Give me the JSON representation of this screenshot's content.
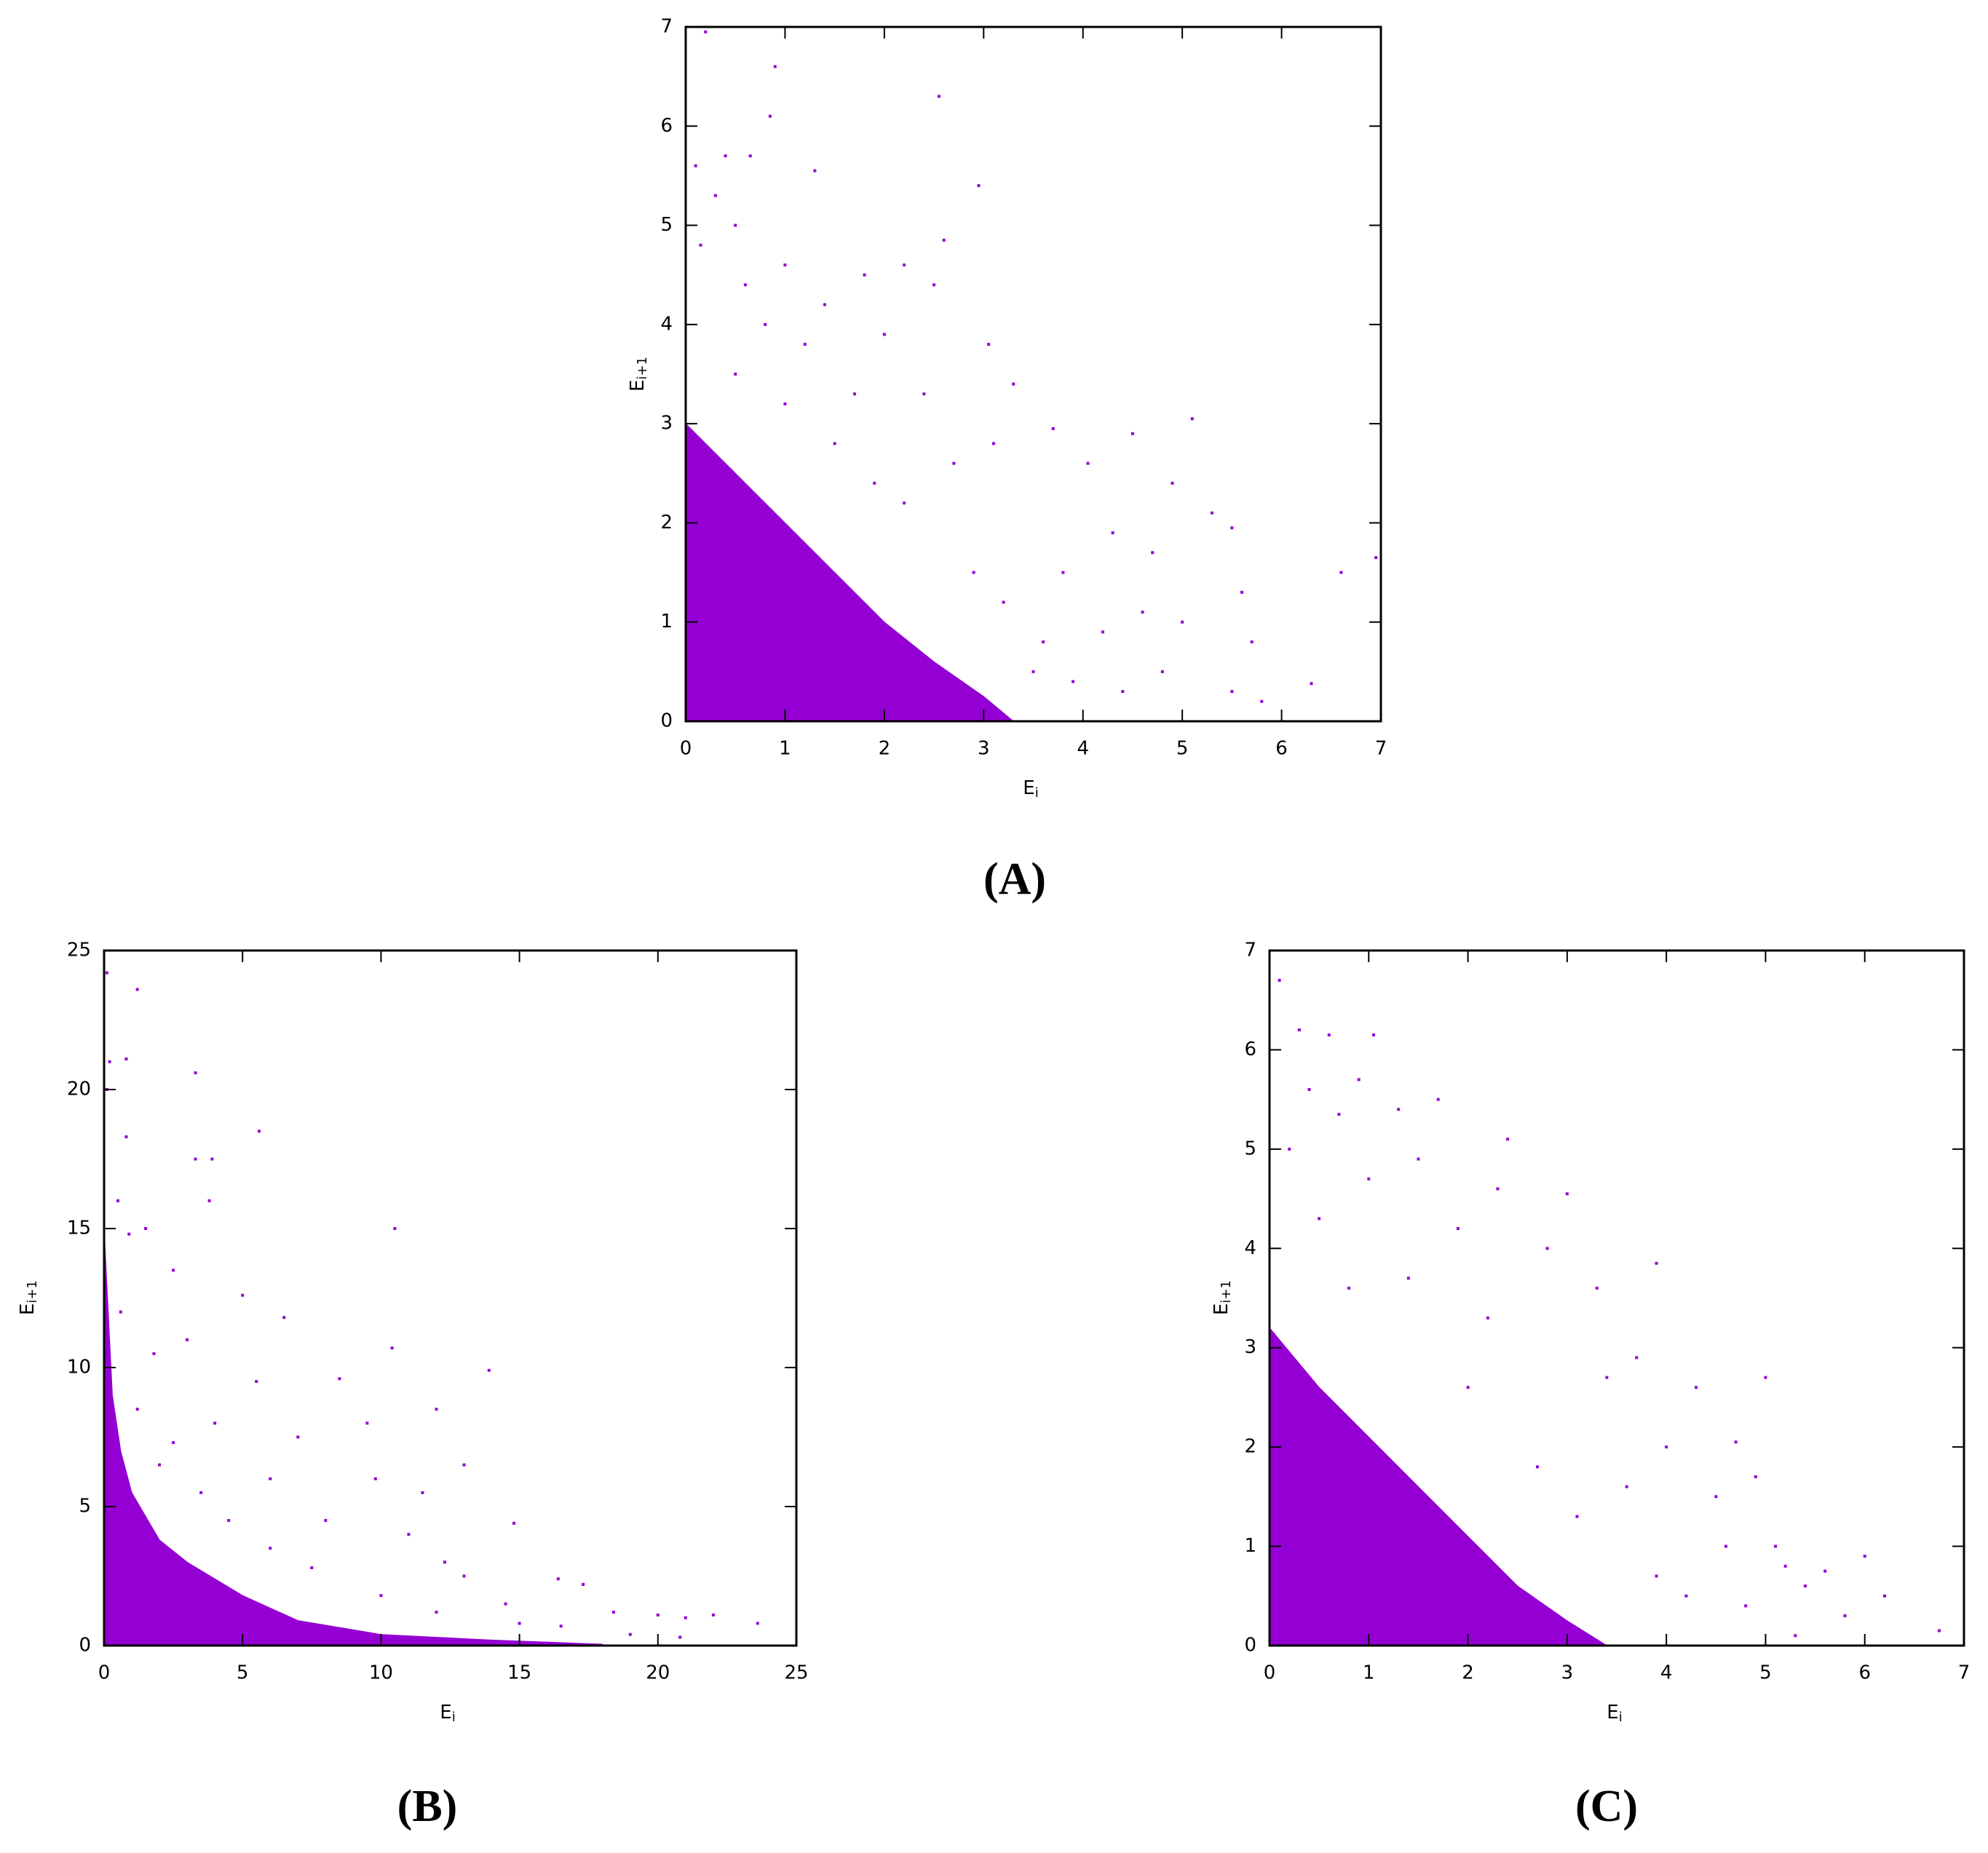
{
  "chart_data": [
    {
      "type": "scatter",
      "label": "(A)",
      "xlabel": "E",
      "xlabel_subscript": "i",
      "ylabel": "E",
      "ylabel_subscript": "i+1",
      "xlim": [
        0,
        7
      ],
      "ylim": [
        0,
        7
      ],
      "xticks": [
        0,
        1,
        2,
        3,
        4,
        5,
        6,
        7
      ],
      "yticks": [
        0,
        1,
        2,
        3,
        4,
        5,
        6,
        7
      ],
      "series": [
        {
          "color": "#9400d3",
          "kind": "area",
          "x": [
            0,
            0,
            0.5,
            1,
            1.5,
            2,
            2.5,
            3,
            3.3,
            0
          ],
          "y": [
            0,
            3.0,
            2.5,
            2.0,
            1.5,
            1.0,
            0.6,
            0.25,
            0,
            0
          ]
        },
        {
          "color": "#9400d3",
          "x": [
            0.2,
            0.9,
            2.55,
            0.85,
            2.95,
            0.1,
            0.4,
            0.65,
            1.3,
            0.3,
            0.5,
            0.15,
            2.6,
            2.2,
            1.8,
            1.0,
            0.6,
            1.4,
            2.5,
            3.05,
            2.0,
            1.2,
            0.8,
            3.3,
            2.4,
            1.7,
            3.7,
            4.05,
            3.1,
            2.7,
            4.9,
            5.1,
            4.5,
            5.3,
            5.5,
            4.7,
            4.3,
            3.8,
            6.95,
            6.6,
            5.6,
            5.0,
            4.6,
            5.7,
            4.2,
            3.6,
            6.3,
            5.8,
            5.5,
            4.8,
            4.4,
            3.9,
            3.5,
            2.2,
            1.9,
            2.9,
            3.2,
            1.5,
            1.0,
            0.5
          ],
          "y": [
            6.95,
            6.6,
            6.3,
            6.1,
            5.4,
            5.6,
            5.7,
            5.7,
            5.55,
            5.3,
            5.0,
            4.8,
            4.85,
            4.6,
            4.5,
            4.6,
            4.4,
            4.2,
            4.4,
            3.8,
            3.9,
            3.8,
            4.0,
            3.4,
            3.3,
            3.3,
            2.95,
            2.6,
            2.8,
            2.6,
            2.4,
            3.05,
            2.9,
            2.1,
            1.95,
            1.7,
            1.9,
            1.5,
            1.65,
            1.5,
            1.3,
            1.0,
            1.1,
            0.8,
            0.9,
            0.8,
            0.38,
            0.2,
            0.3,
            0.5,
            0.3,
            0.4,
            0.5,
            2.2,
            2.4,
            1.5,
            1.2,
            2.8,
            3.2,
            3.5
          ]
        }
      ]
    },
    {
      "type": "scatter",
      "label": "(B)",
      "xlabel": "E",
      "xlabel_subscript": "i",
      "ylabel": "E",
      "ylabel_subscript": "i+1",
      "xlim": [
        0,
        25
      ],
      "ylim": [
        0,
        25
      ],
      "xticks": [
        0,
        5,
        10,
        15,
        20,
        25
      ],
      "yticks": [
        0,
        5,
        10,
        15,
        20,
        25
      ],
      "series": [
        {
          "color": "#9400d3",
          "kind": "area",
          "x": [
            0,
            0,
            0.3,
            0.6,
            1,
            2,
            3,
            5,
            7,
            10,
            14,
            18,
            18,
            0
          ],
          "y": [
            0,
            15,
            9,
            7,
            5.5,
            3.8,
            3,
            1.8,
            0.9,
            0.4,
            0.2,
            0.05,
            0,
            0
          ]
        },
        {
          "color": "#9400d3",
          "x": [
            0.1,
            1.2,
            0.2,
            0.8,
            3.3,
            0.1,
            5.6,
            0.8,
            3.3,
            3.9,
            0.5,
            1.5,
            3.8,
            10.5,
            0.9,
            2.5,
            5,
            6.5,
            3,
            1.8,
            10.4,
            13.9,
            8.5,
            5.5,
            9.5,
            12,
            4,
            7,
            2.5,
            6,
            9.8,
            11.5,
            13,
            14.8,
            8,
            11,
            4.5,
            12.3,
            16.4,
            17.3,
            13,
            14.5,
            18.4,
            20,
            21,
            22,
            23.6,
            15,
            16.5,
            19,
            20.8,
            12,
            10,
            7.5,
            6,
            3.5,
            2,
            1.2,
            0.6
          ],
          "y": [
            24.2,
            23.6,
            21,
            21.1,
            20.6,
            20,
            18.5,
            18.3,
            17.5,
            17.5,
            16,
            15,
            16,
            15,
            14.8,
            13.5,
            12.6,
            11.8,
            11,
            10.5,
            10.7,
            9.9,
            9.6,
            9.5,
            8,
            8.5,
            8,
            7.5,
            7.3,
            6,
            6,
            5.5,
            6.5,
            4.4,
            4.5,
            4,
            4.5,
            3,
            2.4,
            2.2,
            2.5,
            1.5,
            1.2,
            1.1,
            1.0,
            1.1,
            0.8,
            0.8,
            0.7,
            0.4,
            0.3,
            1.2,
            1.8,
            2.8,
            3.5,
            5.5,
            6.5,
            8.5,
            12
          ]
        }
      ]
    },
    {
      "type": "scatter",
      "label": "(C)",
      "xlabel": "E",
      "xlabel_subscript": "i",
      "ylabel": "E",
      "ylabel_subscript": "i+1",
      "xlim": [
        0,
        7
      ],
      "ylim": [
        0,
        7
      ],
      "xticks": [
        0,
        1,
        2,
        3,
        4,
        5,
        6,
        7
      ],
      "yticks": [
        0,
        1,
        2,
        3,
        4,
        5,
        6,
        7
      ],
      "series": [
        {
          "color": "#9400d3",
          "kind": "area",
          "x": [
            0,
            0,
            0.5,
            1,
            1.5,
            2,
            2.5,
            3,
            3.4,
            0
          ],
          "y": [
            0,
            3.2,
            2.6,
            2.1,
            1.6,
            1.1,
            0.6,
            0.25,
            0,
            0
          ]
        },
        {
          "color": "#9400d3",
          "x": [
            0.1,
            1.05,
            0.6,
            0.3,
            0.9,
            0.4,
            0.7,
            1.3,
            1.7,
            0.2,
            1.5,
            2.4,
            2.3,
            3.0,
            1.0,
            1.9,
            2.8,
            3.9,
            0.5,
            3.3,
            2.2,
            3.7,
            4.3,
            5.0,
            3.4,
            4.7,
            4.0,
            4.9,
            4.5,
            3.6,
            5.1,
            4.6,
            5.2,
            6.0,
            5.6,
            6.2,
            6.75,
            5.4,
            5.8,
            4.8,
            4.2,
            3.9,
            5.3,
            2.7,
            3.1,
            1.4,
            2.0,
            0.8
          ],
          "y": [
            6.7,
            6.15,
            6.15,
            6.2,
            5.7,
            5.6,
            5.35,
            5.4,
            5.5,
            5.0,
            4.9,
            5.1,
            4.6,
            4.55,
            4.7,
            4.2,
            4.0,
            3.85,
            4.3,
            3.6,
            3.3,
            2.9,
            2.6,
            2.7,
            2.7,
            2.05,
            2.0,
            1.7,
            1.5,
            1.6,
            1.0,
            1.0,
            0.8,
            0.9,
            0.75,
            0.5,
            0.15,
            0.6,
            0.3,
            0.4,
            0.5,
            0.7,
            0.1,
            1.8,
            1.3,
            3.7,
            2.6,
            3.6
          ]
        }
      ]
    }
  ]
}
